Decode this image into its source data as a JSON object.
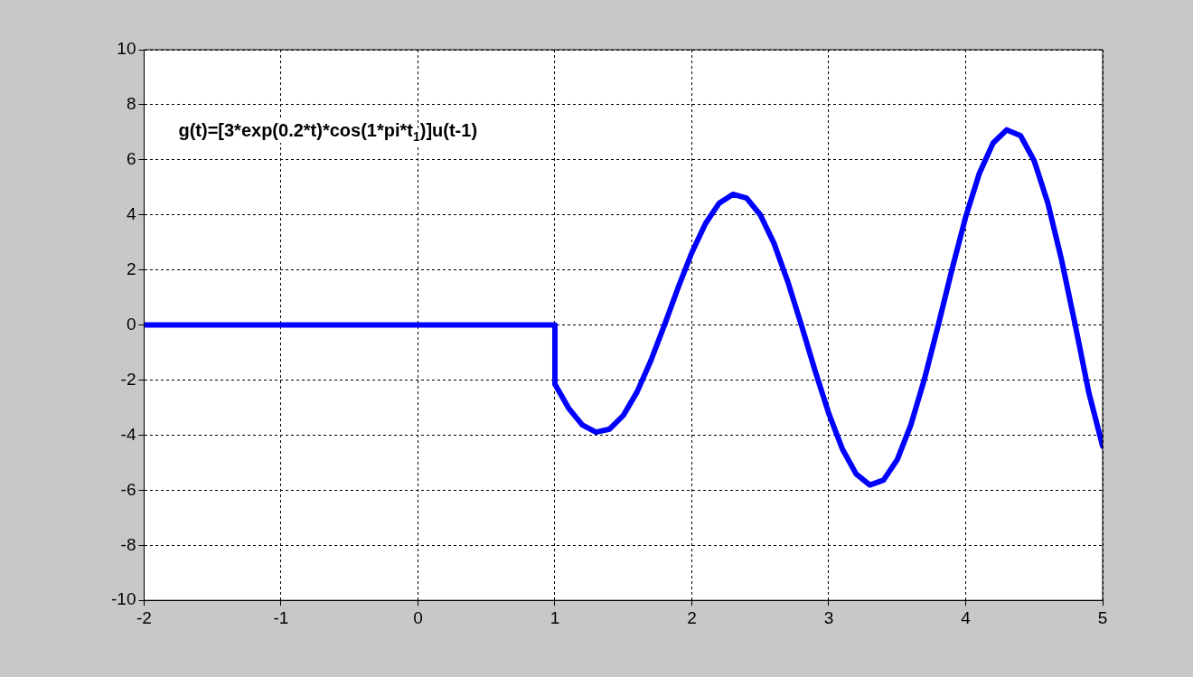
{
  "chart_data": {
    "type": "line",
    "annotations": [
      "g(t)=[3*exp(0.2*t)*cos(1*pi*t$_{1}$)]u(t-1)"
    ],
    "x": [
      -2,
      1,
      1,
      1.1,
      1.2,
      1.3,
      1.4,
      1.5,
      1.6,
      1.7,
      1.8,
      1.9,
      2.0,
      2.1,
      2.2,
      2.3,
      2.4,
      2.5,
      2.6,
      2.7,
      2.8,
      2.9,
      3.0,
      3.1,
      3.2,
      3.3,
      3.4,
      3.5,
      3.6,
      3.7,
      3.8,
      3.9,
      4.0,
      4.1,
      4.2,
      4.3,
      4.4,
      4.5,
      4.6,
      4.7,
      4.8,
      4.9,
      5.0
    ],
    "series": [
      {
        "color": "#0000ff",
        "values": [
          0,
          0,
          -2.15,
          -3.02,
          -3.63,
          -3.89,
          -3.78,
          -3.28,
          -2.43,
          -1.3,
          0,
          1.36,
          2.63,
          3.69,
          4.43,
          4.75,
          4.61,
          4.0,
          2.97,
          1.59,
          0,
          -1.66,
          -3.21,
          -4.51,
          -5.41,
          -5.81,
          -5.63,
          -4.89,
          -3.62,
          -1.94,
          0,
          2.02,
          3.93,
          5.51,
          6.61,
          7.09,
          6.88,
          5.97,
          4.43,
          2.37,
          0,
          -2.47,
          -4.4
        ]
      }
    ],
    "xlim": [
      -2,
      5
    ],
    "xticks": [
      -2,
      -1,
      0,
      1,
      2,
      3,
      4,
      5
    ],
    "ylim": [
      -10,
      10
    ],
    "yticks": [
      -10,
      -8,
      -6,
      -4,
      -2,
      0,
      2,
      4,
      6,
      8,
      10
    ],
    "grid": true,
    "marker": "none",
    "line_style": "solid"
  }
}
